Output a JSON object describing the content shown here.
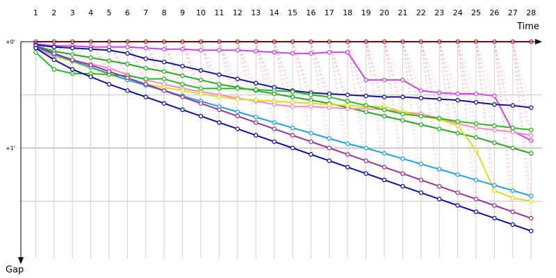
{
  "chart_data": {
    "type": "line",
    "title": "",
    "xlabel": "Time",
    "ylabel": "Gap",
    "x": [
      1,
      2,
      3,
      4,
      5,
      6,
      7,
      8,
      9,
      10,
      11,
      12,
      13,
      14,
      15,
      16,
      17,
      18,
      19,
      20,
      21,
      22,
      23,
      24,
      25,
      26,
      27,
      28
    ],
    "xlim": [
      0,
      29
    ],
    "ylim": [
      0,
      1.95
    ],
    "y_ticks": [
      {
        "value": 0,
        "label": "+0'"
      },
      {
        "value": 1,
        "label": "+1'"
      }
    ],
    "grid": true,
    "legend": "none",
    "series": [
      {
        "color": "#e81c1c",
        "values": [
          0,
          0,
          0,
          0,
          0,
          0,
          0,
          0,
          0,
          0,
          0,
          0,
          0,
          0,
          0,
          0,
          0,
          0,
          0,
          0,
          0,
          0,
          0,
          0,
          0,
          0,
          0,
          0
        ]
      },
      {
        "color": "#cc44ee",
        "values": [
          0.02,
          0.04,
          0.04,
          0.05,
          0.05,
          0.05,
          0.06,
          0.07,
          0.07,
          0.08,
          0.08,
          0.08,
          0.09,
          0.1,
          0.11,
          0.11,
          0.1,
          0.1,
          0.36,
          0.36,
          0.36,
          0.46,
          0.48,
          0.49,
          0.49,
          0.51,
          0.84,
          0.93
        ]
      },
      {
        "color": "#12129e",
        "values": [
          0.03,
          0.05,
          0.06,
          0.07,
          0.08,
          0.11,
          0.16,
          0.19,
          0.23,
          0.27,
          0.31,
          0.35,
          0.39,
          0.43,
          0.46,
          0.48,
          0.49,
          0.5,
          0.51,
          0.52,
          0.52,
          0.53,
          0.54,
          0.55,
          0.57,
          0.59,
          0.6,
          0.62
        ]
      },
      {
        "color": "#22aa22",
        "values": [
          0.04,
          0.09,
          0.12,
          0.15,
          0.18,
          0.21,
          0.25,
          0.28,
          0.32,
          0.36,
          0.4,
          0.43,
          0.46,
          0.49,
          0.52,
          0.55,
          0.58,
          0.62,
          0.66,
          0.7,
          0.74,
          0.78,
          0.82,
          0.86,
          0.9,
          0.95,
          1.0,
          1.05
        ]
      },
      {
        "color": "#ff88bb",
        "values": [
          0.06,
          0.14,
          0.18,
          0.21,
          0.25,
          0.31,
          0.36,
          0.4,
          0.44,
          0.47,
          0.5,
          0.53,
          0.56,
          0.59,
          0.61,
          0.61,
          0.62,
          0.63,
          0.63,
          0.64,
          0.66,
          0.68,
          0.72,
          0.77,
          0.81,
          0.83,
          0.85,
          0.88
        ]
      },
      {
        "color": "#dddd22",
        "values": [
          0.05,
          0.13,
          0.19,
          0.25,
          0.31,
          0.36,
          0.4,
          0.43,
          0.46,
          0.49,
          0.52,
          0.54,
          0.55,
          0.56,
          0.57,
          0.58,
          0.59,
          0.6,
          0.61,
          0.61,
          0.66,
          0.7,
          0.73,
          0.79,
          1.02,
          1.4,
          1.47,
          1.5
        ]
      },
      {
        "color": "#1aa0e8",
        "values": [
          0.05,
          0.12,
          0.18,
          0.24,
          0.3,
          0.36,
          0.41,
          0.46,
          0.51,
          0.56,
          0.61,
          0.66,
          0.71,
          0.76,
          0.81,
          0.86,
          0.91,
          0.96,
          1.0,
          1.05,
          1.1,
          1.15,
          1.2,
          1.25,
          1.3,
          1.35,
          1.4,
          1.45
        ]
      },
      {
        "color": "#22bb22",
        "values": [
          0.1,
          0.26,
          0.3,
          0.3,
          0.31,
          0.32,
          0.35,
          0.35,
          0.4,
          0.44,
          0.44,
          0.44,
          0.45,
          0.46,
          0.47,
          0.5,
          0.52,
          0.56,
          0.6,
          0.64,
          0.68,
          0.7,
          0.72,
          0.75,
          0.77,
          0.79,
          0.81,
          0.83
        ]
      },
      {
        "color": "#993399",
        "values": [
          0.04,
          0.11,
          0.17,
          0.22,
          0.28,
          0.34,
          0.4,
          0.46,
          0.52,
          0.58,
          0.64,
          0.7,
          0.76,
          0.82,
          0.88,
          0.94,
          1.0,
          1.06,
          1.12,
          1.18,
          1.24,
          1.3,
          1.36,
          1.42,
          1.48,
          1.54,
          1.6,
          1.66
        ]
      },
      {
        "color": "#0e0ea8",
        "values": [
          0.06,
          0.17,
          0.26,
          0.33,
          0.4,
          0.46,
          0.52,
          0.58,
          0.64,
          0.7,
          0.76,
          0.82,
          0.88,
          0.94,
          1.0,
          1.06,
          1.12,
          1.18,
          1.24,
          1.3,
          1.36,
          1.42,
          1.48,
          1.54,
          1.6,
          1.66,
          1.72,
          1.78
        ]
      }
    ]
  }
}
